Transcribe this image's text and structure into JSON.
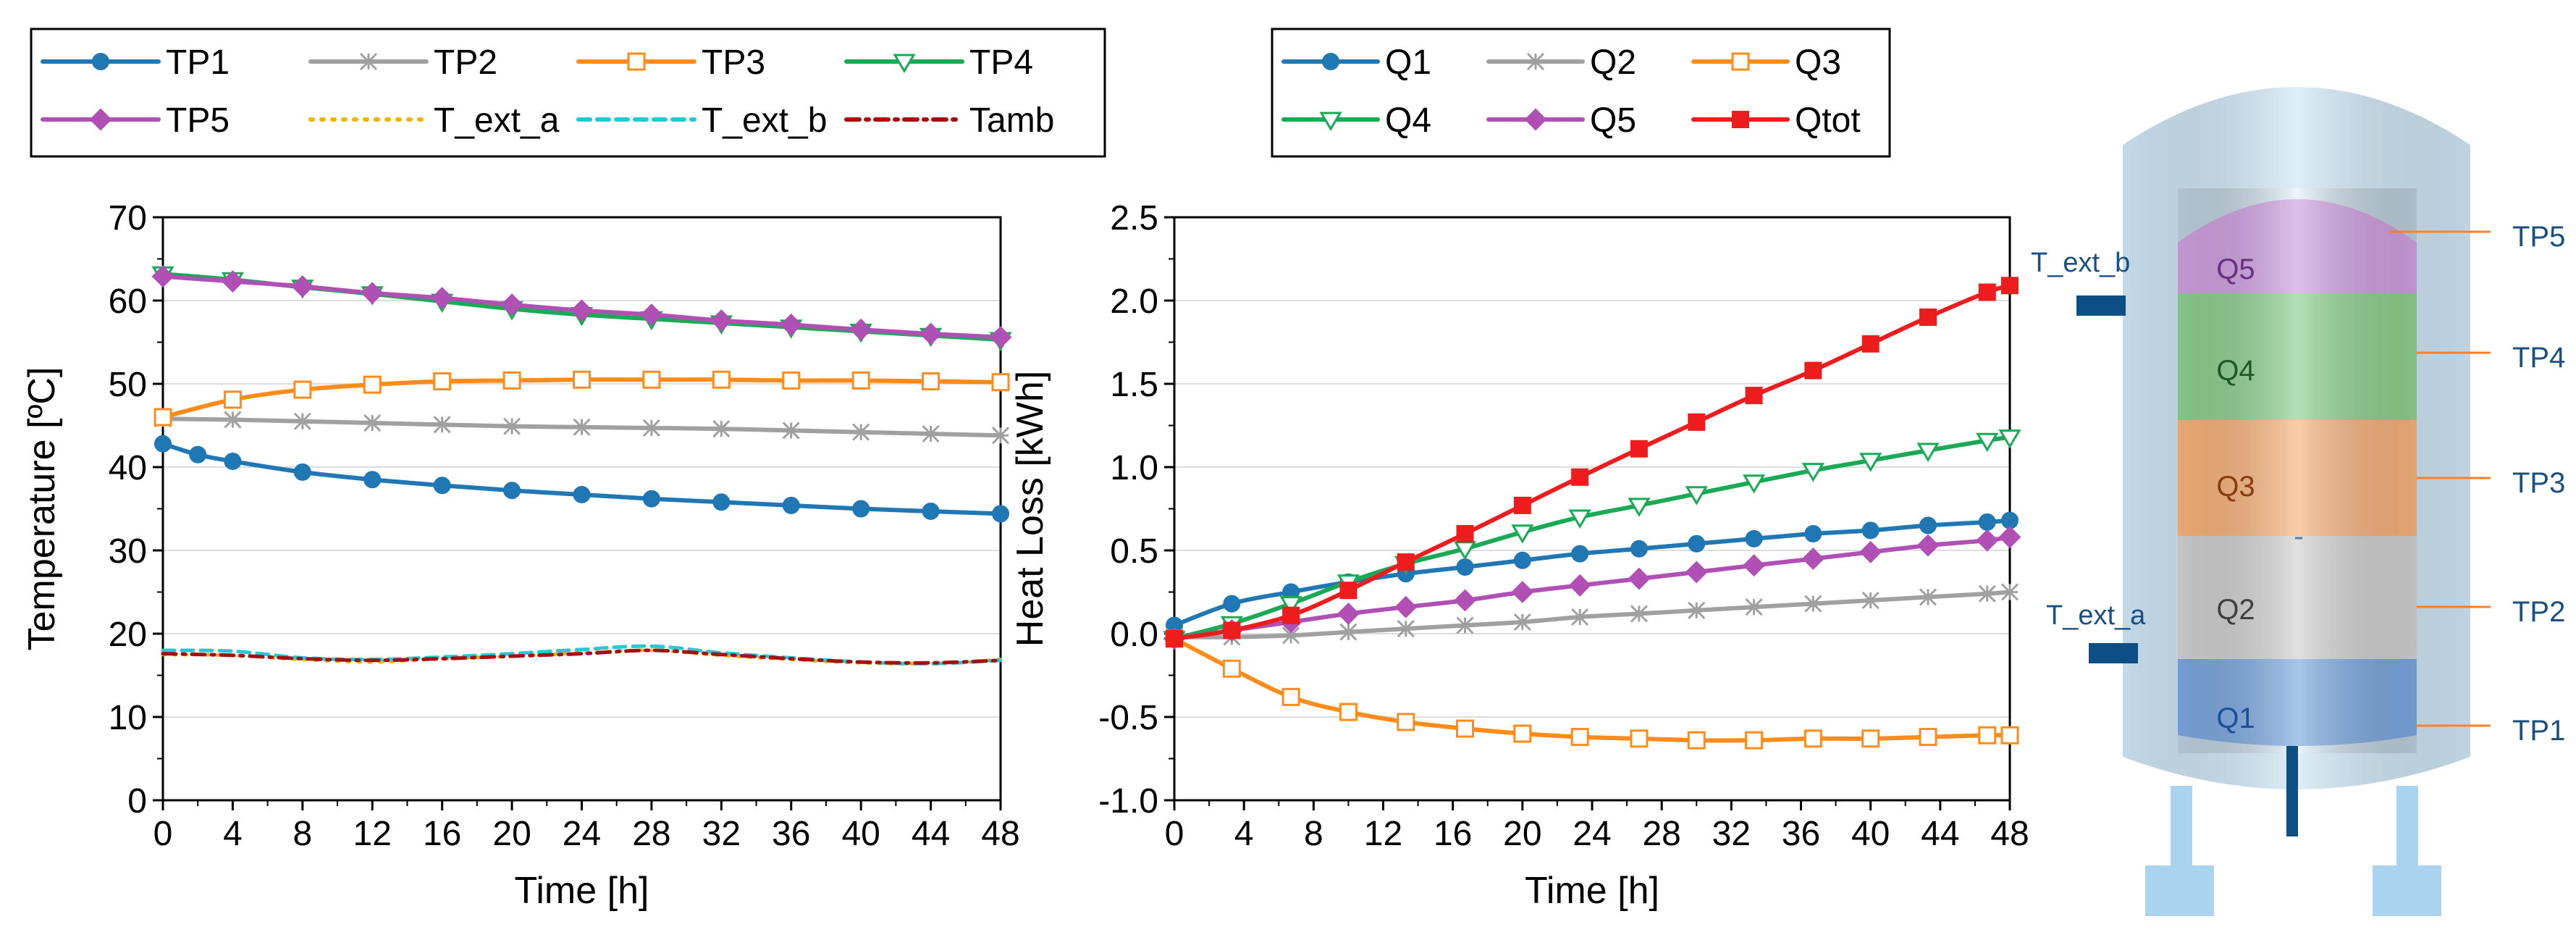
{
  "chart_data": [
    {
      "id": "temp",
      "type": "line",
      "xlabel": "Time [h]",
      "ylabel": "Temperature [ºC]",
      "xlim": [
        0,
        48
      ],
      "ylim": [
        0,
        70
      ],
      "xticks": [
        0,
        4,
        8,
        12,
        16,
        20,
        24,
        28,
        32,
        36,
        40,
        44,
        48
      ],
      "yticks": [
        0,
        10,
        20,
        30,
        40,
        50,
        60,
        70
      ],
      "grid": true,
      "series": [
        {
          "name": "TP1",
          "color": "#1f77b4",
          "style": "solid",
          "marker": "circle",
          "x": [
            0,
            2,
            4,
            8,
            12,
            16,
            20,
            24,
            28,
            32,
            36,
            40,
            44,
            48
          ],
          "y": [
            42.8,
            41.5,
            40.7,
            39.4,
            38.5,
            37.8,
            37.2,
            36.7,
            36.2,
            35.8,
            35.4,
            35.0,
            34.7,
            34.4
          ]
        },
        {
          "name": "TP2",
          "color": "#a0a0a0",
          "style": "solid",
          "marker": "x",
          "x": [
            0,
            4,
            8,
            12,
            16,
            20,
            24,
            28,
            32,
            36,
            40,
            44,
            48
          ],
          "y": [
            45.8,
            45.7,
            45.5,
            45.3,
            45.1,
            44.9,
            44.8,
            44.7,
            44.6,
            44.4,
            44.2,
            44.0,
            43.8
          ]
        },
        {
          "name": "TP3",
          "color": "#ff8c1a",
          "style": "solid",
          "marker": "square-open",
          "x": [
            0,
            4,
            8,
            12,
            16,
            20,
            24,
            28,
            32,
            36,
            40,
            44,
            48
          ],
          "y": [
            46.0,
            48.1,
            49.3,
            49.9,
            50.3,
            50.4,
            50.5,
            50.5,
            50.5,
            50.4,
            50.4,
            50.3,
            50.2
          ]
        },
        {
          "name": "TP4",
          "color": "#1aaa55",
          "style": "solid",
          "marker": "triangle-down",
          "x": [
            0,
            4,
            8,
            12,
            16,
            20,
            24,
            28,
            32,
            36,
            40,
            44,
            48
          ],
          "y": [
            63.2,
            62.5,
            61.6,
            60.8,
            59.9,
            59.0,
            58.3,
            57.8,
            57.3,
            56.8,
            56.3,
            55.8,
            55.3
          ]
        },
        {
          "name": "TP5",
          "color": "#b04fb4",
          "style": "solid",
          "marker": "diamond",
          "x": [
            0,
            4,
            8,
            12,
            16,
            20,
            24,
            28,
            32,
            36,
            40,
            44,
            48
          ],
          "y": [
            62.9,
            62.3,
            61.7,
            60.9,
            60.3,
            59.5,
            58.8,
            58.3,
            57.6,
            57.1,
            56.5,
            56.0,
            55.6
          ]
        },
        {
          "name": "T_ext_a",
          "color": "#f0b400",
          "style": "dotted",
          "marker": "none",
          "x": [
            0,
            4,
            8,
            12,
            16,
            20,
            24,
            28,
            32,
            36,
            40,
            44,
            48
          ],
          "y": [
            17.5,
            17.4,
            16.9,
            16.6,
            17.0,
            17.3,
            17.7,
            18.0,
            17.4,
            16.9,
            16.5,
            16.4,
            16.9
          ]
        },
        {
          "name": "T_ext_b",
          "color": "#29c7d6",
          "style": "dashed",
          "marker": "none",
          "x": [
            0,
            4,
            8,
            12,
            16,
            20,
            24,
            28,
            32,
            36,
            40,
            44,
            48
          ],
          "y": [
            18.0,
            17.9,
            17.1,
            16.9,
            17.2,
            17.6,
            18.1,
            18.5,
            17.7,
            17.1,
            16.6,
            16.4,
            16.8
          ]
        },
        {
          "name": "Tamb",
          "color": "#a50f0f",
          "style": "dashdot",
          "marker": "none",
          "x": [
            0,
            4,
            8,
            12,
            16,
            20,
            24,
            28,
            32,
            36,
            40,
            44,
            48
          ],
          "y": [
            17.6,
            17.4,
            17.0,
            16.8,
            17.0,
            17.3,
            17.6,
            18.0,
            17.5,
            17.0,
            16.6,
            16.5,
            16.8
          ]
        }
      ]
    },
    {
      "id": "heat",
      "type": "line",
      "xlabel": "Time [h]",
      "ylabel": "Heat Loss [kWh]",
      "xlim": [
        0,
        48
      ],
      "ylim": [
        -1.0,
        2.5
      ],
      "xticks": [
        0,
        4,
        8,
        12,
        16,
        20,
        24,
        28,
        32,
        36,
        40,
        44,
        48
      ],
      "yticks": [
        "-1.0",
        "-0.5",
        "0.0",
        "0.5",
        "1.0",
        "1.5",
        "2.0",
        "2.5"
      ],
      "grid": true,
      "series": [
        {
          "name": "Q1",
          "color": "#1f77b4",
          "marker": "circle",
          "x": [
            0,
            3.3,
            6.7,
            10,
            13.3,
            16.7,
            20,
            23.3,
            26.7,
            30,
            33.3,
            36.7,
            40,
            43.3,
            46.7,
            48
          ],
          "y": [
            0.05,
            0.18,
            0.25,
            0.31,
            0.36,
            0.4,
            0.44,
            0.48,
            0.51,
            0.54,
            0.57,
            0.6,
            0.62,
            0.65,
            0.67,
            0.68
          ]
        },
        {
          "name": "Q2",
          "color": "#a0a0a0",
          "marker": "x",
          "x": [
            0,
            3.3,
            6.7,
            10,
            13.3,
            16.7,
            20,
            23.3,
            26.7,
            30,
            33.3,
            36.7,
            40,
            43.3,
            46.7,
            48
          ],
          "y": [
            -0.02,
            -0.02,
            -0.01,
            0.01,
            0.03,
            0.05,
            0.07,
            0.1,
            0.12,
            0.14,
            0.16,
            0.18,
            0.2,
            0.22,
            0.24,
            0.25
          ]
        },
        {
          "name": "Q3",
          "color": "#ff8c1a",
          "marker": "square-open",
          "x": [
            0,
            3.3,
            6.7,
            10,
            13.3,
            16.7,
            20,
            23.3,
            26.7,
            30,
            33.3,
            36.7,
            40,
            43.3,
            46.7,
            48
          ],
          "y": [
            -0.03,
            -0.21,
            -0.38,
            -0.47,
            -0.53,
            -0.57,
            -0.6,
            -0.62,
            -0.63,
            -0.64,
            -0.64,
            -0.63,
            -0.63,
            -0.62,
            -0.61,
            -0.61
          ]
        },
        {
          "name": "Q4",
          "color": "#1aaa55",
          "marker": "triangle-down",
          "x": [
            0,
            3.3,
            6.7,
            10,
            13.3,
            16.7,
            20,
            23.3,
            26.7,
            30,
            33.3,
            36.7,
            40,
            43.3,
            46.7,
            48
          ],
          "y": [
            -0.03,
            0.06,
            0.18,
            0.31,
            0.42,
            0.51,
            0.61,
            0.7,
            0.77,
            0.84,
            0.91,
            0.98,
            1.04,
            1.1,
            1.16,
            1.18
          ]
        },
        {
          "name": "Q5",
          "color": "#b04fb4",
          "marker": "diamond",
          "x": [
            0,
            3.3,
            6.7,
            10,
            13.3,
            16.7,
            20,
            23.3,
            26.7,
            30,
            33.3,
            36.7,
            40,
            43.3,
            46.7,
            48
          ],
          "y": [
            -0.03,
            0.02,
            0.07,
            0.12,
            0.16,
            0.2,
            0.25,
            0.29,
            0.33,
            0.37,
            0.41,
            0.45,
            0.49,
            0.53,
            0.56,
            0.58
          ]
        },
        {
          "name": "Qtot",
          "color": "#ee1c1c",
          "marker": "square-filled",
          "x": [
            0,
            3.3,
            6.7,
            10,
            13.3,
            16.7,
            20,
            23.3,
            26.7,
            30,
            33.3,
            36.7,
            40,
            43.3,
            46.7,
            48
          ],
          "y": [
            -0.03,
            0.02,
            0.11,
            0.26,
            0.43,
            0.6,
            0.77,
            0.94,
            1.11,
            1.27,
            1.43,
            1.58,
            1.74,
            1.9,
            2.05,
            2.09
          ]
        }
      ]
    }
  ],
  "diagram": {
    "zones": [
      {
        "label": "Q5",
        "color": "#cf9fe0"
      },
      {
        "label": "Q4",
        "color": "#8dd08f"
      },
      {
        "label": "Q3",
        "color": "#f7b27b"
      },
      {
        "label": "Q2",
        "color": "#d0d0d0"
      },
      {
        "label": "Q1",
        "color": "#7aa7e0"
      }
    ],
    "probe_labels": [
      "TP5",
      "TP4",
      "TP3",
      "TP2",
      "TP1"
    ],
    "ext_labels": [
      "T_ext_b",
      "T_ext_a"
    ],
    "colors": {
      "tank": "#cfe7f7",
      "legs": "#a8d4ef",
      "sensor": "#0d4f85",
      "label": "#1a4f82",
      "leader": "#ff7f27"
    }
  }
}
